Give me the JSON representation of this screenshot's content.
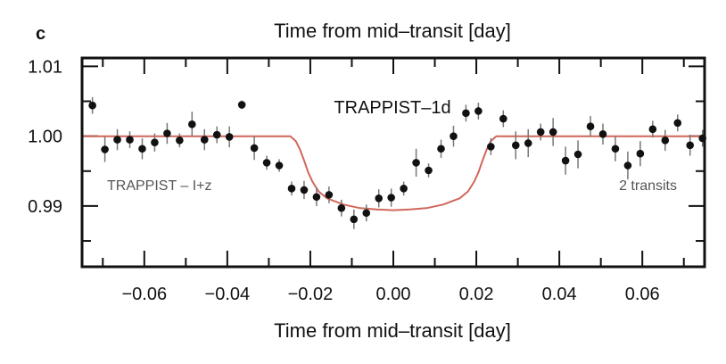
{
  "panel_label": "c",
  "top_axis_label": "Time from mid–transit [day]",
  "chart_data": {
    "type": "scatter",
    "title": "TRAPPIST–1d",
    "xlabel": "Time from mid–transit [day]",
    "ylabel": "",
    "xlim": [
      -0.075,
      0.075
    ],
    "ylim": [
      0.9813,
      1.0112
    ],
    "x_ticks": [
      -0.06,
      -0.04,
      -0.02,
      0.0,
      0.02,
      0.04,
      0.06
    ],
    "x_tick_labels": [
      "−0.06",
      "−0.04",
      "−0.02",
      "0.00",
      "0.02",
      "0.04",
      "0.06"
    ],
    "y_ticks": [
      0.99,
      1.0,
      1.01
    ],
    "y_tick_labels": [
      "0.99",
      "1.00",
      "1.01"
    ],
    "grid": false,
    "annotations": [
      {
        "text": "TRAPPIST – I+z",
        "position": "left"
      },
      {
        "text": "2 transits",
        "position": "right"
      }
    ],
    "colors": {
      "data": "#111111",
      "model": "#d0675a",
      "frame": "#111111",
      "annotation": "#555555"
    },
    "series": [
      {
        "kind": "points",
        "x": [
          -0.0725,
          -0.0695,
          -0.0665,
          -0.0635,
          -0.0605,
          -0.0575,
          -0.0545,
          -0.0515,
          -0.0485,
          -0.0455,
          -0.0425,
          -0.0395,
          -0.0365,
          -0.0335,
          -0.0305,
          -0.0275,
          -0.0245,
          -0.0215,
          -0.0185,
          -0.0155,
          -0.0125,
          -0.0095,
          -0.0065,
          -0.0035,
          -0.0005,
          0.0025,
          0.0055,
          0.0085,
          0.0115,
          0.0145,
          0.0175,
          0.0205,
          0.0235,
          0.0265,
          0.0295,
          0.0325,
          0.0355,
          0.0385,
          0.0415,
          0.0445,
          0.0475,
          0.0505,
          0.0535,
          0.0565,
          0.0595,
          0.0625,
          0.0655,
          0.0685,
          0.0715,
          0.0745
        ],
        "y": [
          1.0044,
          0.9981,
          0.9995,
          0.9995,
          0.9982,
          0.9991,
          1.0004,
          0.9994,
          1.0017,
          0.9995,
          1.0002,
          0.9999,
          1.0045,
          0.9983,
          0.9962,
          0.9958,
          0.9925,
          0.9923,
          0.9913,
          0.9916,
          0.9897,
          0.9881,
          0.989,
          0.9911,
          0.9912,
          0.9925,
          0.9962,
          0.9951,
          0.9982,
          1.0,
          1.0033,
          1.0036,
          0.9985,
          1.0025,
          0.9987,
          0.999,
          1.0006,
          1.0006,
          0.9965,
          0.9974,
          1.0014,
          1.0003,
          0.9982,
          0.9958,
          0.9975,
          1.001,
          0.9994,
          1.0019,
          0.9987,
          0.9997
        ],
        "err": [
          0.0012,
          0.0018,
          0.0015,
          0.0012,
          0.0015,
          0.0013,
          0.0015,
          0.001,
          0.0018,
          0.0015,
          0.0012,
          0.0015,
          0.0006,
          0.0017,
          0.001,
          0.0009,
          0.001,
          0.0013,
          0.0013,
          0.0012,
          0.0012,
          0.0014,
          0.0012,
          0.0013,
          0.0013,
          0.001,
          0.002,
          0.001,
          0.0013,
          0.0015,
          0.0012,
          0.0012,
          0.0012,
          0.0012,
          0.002,
          0.002,
          0.0012,
          0.002,
          0.002,
          0.002,
          0.0015,
          0.0015,
          0.0018,
          0.002,
          0.0018,
          0.0012,
          0.0015,
          0.0012,
          0.0015,
          0.0012
        ]
      },
      {
        "kind": "model",
        "x": [
          -0.075,
          -0.0248,
          -0.0235,
          -0.0225,
          -0.0215,
          -0.0205,
          -0.0195,
          -0.018,
          -0.016,
          -0.012,
          -0.008,
          -0.004,
          0.0,
          0.004,
          0.008,
          0.012,
          0.016,
          0.018,
          0.0195,
          0.0205,
          0.0215,
          0.0225,
          0.0235,
          0.0248,
          0.075
        ],
        "y": [
          1.0,
          1.0,
          0.9993,
          0.9981,
          0.9965,
          0.9948,
          0.9935,
          0.9921,
          0.9911,
          0.9902,
          0.9897,
          0.9895,
          0.9894,
          0.9895,
          0.9897,
          0.9902,
          0.9911,
          0.9921,
          0.9935,
          0.9948,
          0.9965,
          0.9981,
          0.9993,
          1.0,
          1.0
        ]
      }
    ]
  }
}
